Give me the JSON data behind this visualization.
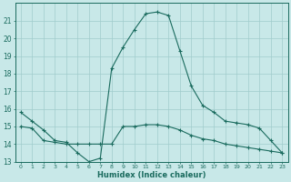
{
  "xlabel": "Humidex (Indice chaleur)",
  "xlim": [
    -0.5,
    23.5
  ],
  "ylim": [
    13,
    22
  ],
  "yticks": [
    13,
    14,
    15,
    16,
    17,
    18,
    19,
    20,
    21
  ],
  "xticks": [
    0,
    1,
    2,
    3,
    4,
    5,
    6,
    7,
    8,
    9,
    10,
    11,
    12,
    13,
    14,
    15,
    16,
    17,
    18,
    19,
    20,
    21,
    22,
    23
  ],
  "bg_color": "#c8e8e8",
  "line_color": "#1a6b5e",
  "grid_color": "#a0cccc",
  "line1_x": [
    0,
    1,
    2,
    3,
    4,
    5,
    6,
    7,
    8,
    9,
    10,
    11,
    12,
    13,
    14,
    15,
    16,
    17,
    18,
    19,
    20,
    21,
    22,
    23
  ],
  "line1_y": [
    15.8,
    15.3,
    14.8,
    14.2,
    14.1,
    13.5,
    13.0,
    13.2,
    18.3,
    19.5,
    20.5,
    21.4,
    21.5,
    21.3,
    19.3,
    17.3,
    16.2,
    15.8,
    15.3,
    15.2,
    15.1,
    14.9,
    14.2,
    13.5
  ],
  "line2_x": [
    0,
    1,
    2,
    3,
    4,
    5,
    6,
    7,
    8,
    9,
    10,
    11,
    12,
    13,
    14,
    15,
    16,
    17,
    18,
    19,
    20,
    21,
    22,
    23
  ],
  "line2_y": [
    15.0,
    14.9,
    14.2,
    14.1,
    14.0,
    14.0,
    14.0,
    14.0,
    14.0,
    15.0,
    15.0,
    15.1,
    15.1,
    15.0,
    14.8,
    14.5,
    14.3,
    14.2,
    14.0,
    13.9,
    13.8,
    13.7,
    13.6,
    13.5
  ]
}
